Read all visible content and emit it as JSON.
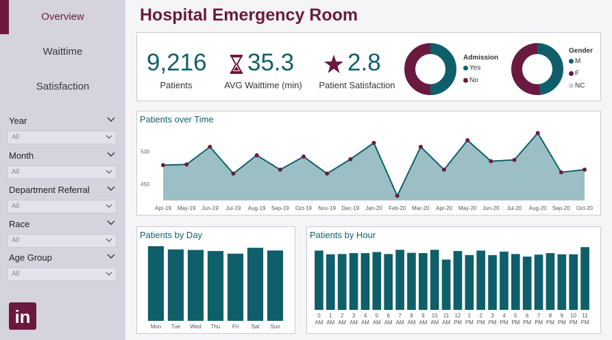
{
  "nav": {
    "items": [
      {
        "label": "Overview",
        "active": true
      },
      {
        "label": "Waittime",
        "active": false
      },
      {
        "label": "Satisfaction",
        "active": false
      }
    ]
  },
  "filters": [
    {
      "label": "Year",
      "value": "All"
    },
    {
      "label": "Month",
      "value": "All"
    },
    {
      "label": "Department Referral",
      "value": "All"
    },
    {
      "label": "Race",
      "value": "All"
    },
    {
      "label": "Age Group",
      "value": "All"
    }
  ],
  "logo": "in",
  "page": {
    "title": "Hospital Emergency Room"
  },
  "kpis": {
    "patients": {
      "value": "9,216",
      "label": "Patients"
    },
    "waittime": {
      "value": "35.3",
      "label": "AVG Waittime (min)",
      "icon": "hourglass-icon"
    },
    "satisfaction": {
      "value": "2.8",
      "label": "Patient Satisfaction",
      "icon": "star-icon"
    }
  },
  "colors": {
    "teal": "#0e5f6a",
    "maroon": "#6b1a3f",
    "area": "#9bbfc5",
    "grey": "#d0d0d8"
  },
  "admission_donut": {
    "title": "Admission",
    "items": [
      {
        "label": "Yes",
        "value": 50,
        "color": "#0e5f6a"
      },
      {
        "label": "No",
        "value": 50,
        "color": "#6b1a3f"
      }
    ]
  },
  "gender_donut": {
    "title": "Gender",
    "items": [
      {
        "label": "M",
        "value": 48,
        "color": "#0e5f6a"
      },
      {
        "label": "F",
        "value": 52,
        "color": "#6b1a3f"
      },
      {
        "label": "NC",
        "value": 0,
        "color": "#d0d0d8"
      }
    ]
  },
  "chart_data": [
    {
      "type": "area",
      "title": "Patients over Time",
      "categories": [
        "Apr-19",
        "May-19",
        "Jun-19",
        "Jul-19",
        "Aug-19",
        "Sep-19",
        "Oct-19",
        "Nov-19",
        "Dec-19",
        "Jan-20",
        "Feb-20",
        "Mar-20",
        "Apr-20",
        "May-20",
        "Jun-20",
        "Jul-20",
        "Aug-20",
        "Sep-20",
        "Oct-20"
      ],
      "values": [
        479,
        480,
        507,
        466,
        494,
        472,
        492,
        466,
        488,
        513,
        432,
        507,
        472,
        517,
        485,
        487,
        528,
        468,
        472
      ],
      "yticks": [
        450,
        500
      ],
      "ylim": [
        425,
        540
      ]
    },
    {
      "type": "bar",
      "title": "Patients by Day",
      "categories": [
        "Mon",
        "Tue",
        "Wed",
        "Thu",
        "Fri",
        "Sat",
        "Sun"
      ],
      "values": [
        1400,
        1340,
        1330,
        1310,
        1260,
        1370,
        1320
      ],
      "ylim": [
        0,
        1450
      ]
    },
    {
      "type": "bar",
      "title": "Patients by Hour",
      "categories": [
        "0",
        "1",
        "2",
        "3",
        "4",
        "5",
        "6",
        "7",
        "8",
        "9",
        "10",
        "11",
        "12",
        "1",
        "2",
        "3",
        "4",
        "5",
        "6",
        "7",
        "8",
        "9",
        "10",
        "11"
      ],
      "category_suffix": [
        "AM",
        "AM",
        "AM",
        "AM",
        "AM",
        "AM",
        "AM",
        "AM",
        "AM",
        "AM",
        "AM",
        "AM",
        "PM",
        "PM",
        "PM",
        "PM",
        "PM",
        "PM",
        "PM",
        "PM",
        "PM",
        "PM",
        "PM",
        "PM"
      ],
      "values": [
        395,
        370,
        372,
        378,
        378,
        385,
        372,
        400,
        380,
        378,
        400,
        335,
        392,
        365,
        395,
        365,
        388,
        372,
        355,
        368,
        378,
        370,
        370,
        418
      ],
      "ylim": [
        0,
        460
      ]
    }
  ]
}
